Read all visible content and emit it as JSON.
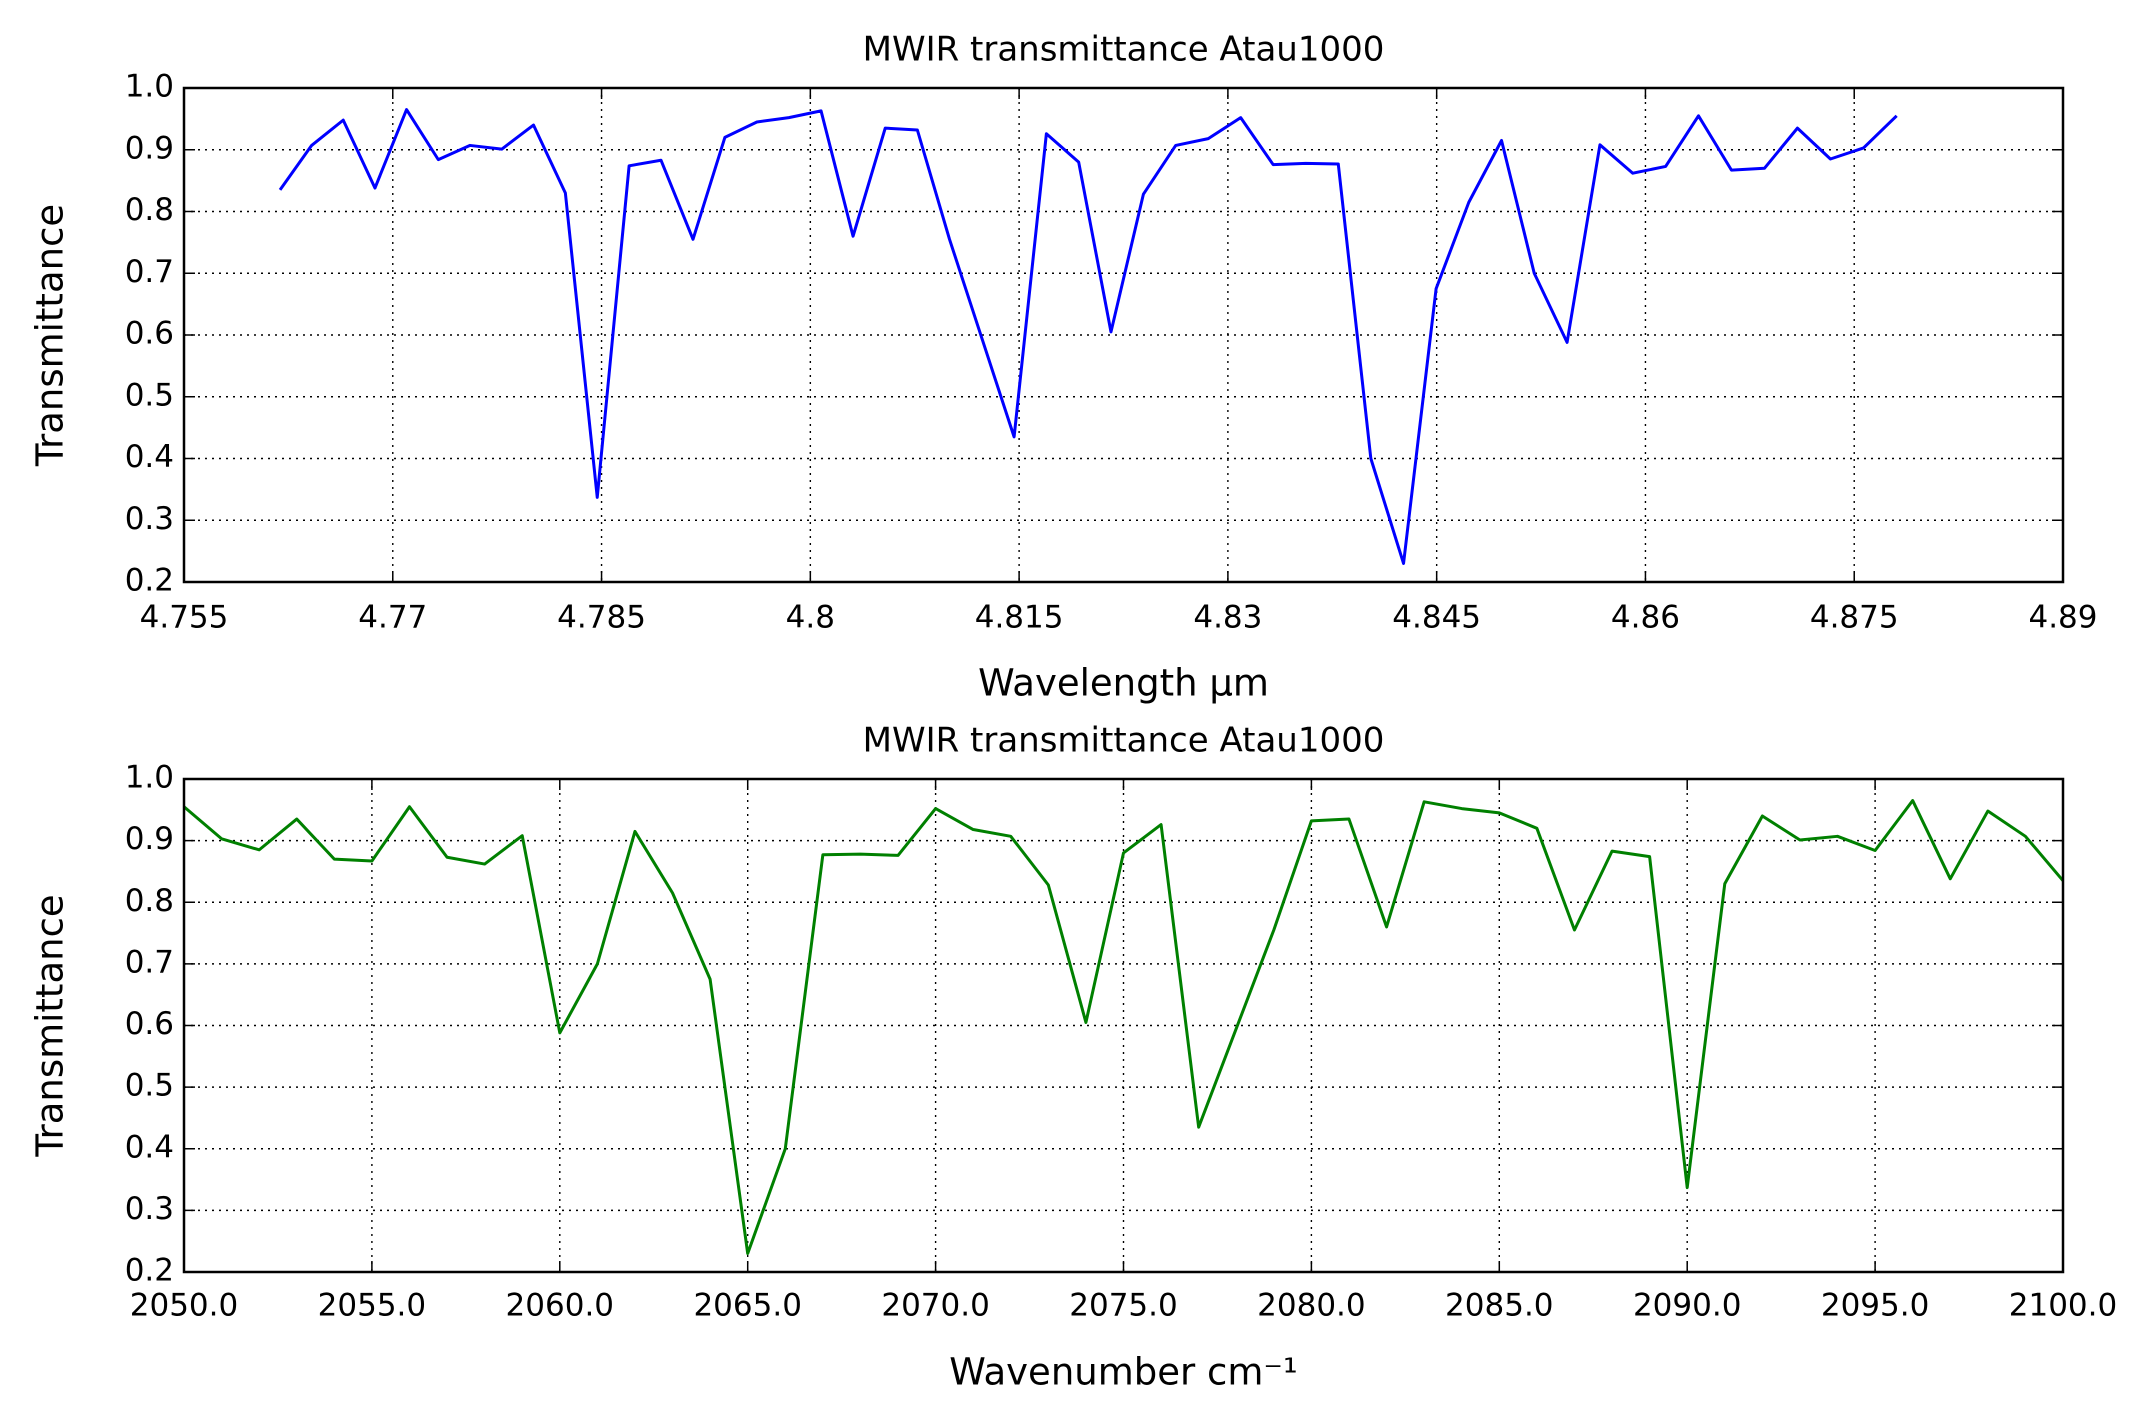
{
  "chart_data": [
    {
      "type": "line",
      "title": "MWIR transmittance Atau1000",
      "x_label": "Wavelength μm",
      "y_label": "Transmittance",
      "color": "#0000ff",
      "grid": true,
      "x": [
        4.7619,
        4.76417,
        4.76644,
        4.76872,
        4.77099,
        4.77327,
        4.77555,
        4.77783,
        4.78011,
        4.7824,
        4.78469,
        4.78698,
        4.78927,
        4.79157,
        4.79386,
        4.79616,
        4.79846,
        4.80077,
        4.80307,
        4.80538,
        4.80769,
        4.81,
        4.81232,
        4.81464,
        4.81696,
        4.81928,
        4.8216,
        4.82393,
        4.82625,
        4.82859,
        4.83092,
        4.83325,
        4.83559,
        4.83793,
        4.84027,
        4.84262,
        4.84496,
        4.84731,
        4.84966,
        4.85201,
        4.85437,
        4.85673,
        4.85909,
        4.86145,
        4.86381,
        4.86618,
        4.86855,
        4.87092,
        4.87329,
        4.87567,
        4.87805
      ],
      "values": [
        0.835,
        0.907,
        0.948,
        0.838,
        0.965,
        0.884,
        0.907,
        0.901,
        0.94,
        0.83,
        0.337,
        0.874,
        0.883,
        0.755,
        0.92,
        0.945,
        0.952,
        0.963,
        0.76,
        0.935,
        0.932,
        0.755,
        0.595,
        0.435,
        0.926,
        0.88,
        0.605,
        0.828,
        0.907,
        0.918,
        0.952,
        0.876,
        0.878,
        0.877,
        0.4,
        0.23,
        0.675,
        0.815,
        0.915,
        0.7,
        0.588,
        0.908,
        0.862,
        0.873,
        0.955,
        0.867,
        0.87,
        0.935,
        0.885,
        0.903,
        0.955
      ],
      "xlim": [
        4.755,
        4.89
      ],
      "xticks": [
        4.755,
        4.77,
        4.785,
        4.8,
        4.815,
        4.83,
        4.845,
        4.86,
        4.875,
        4.89
      ],
      "ylim": [
        0.2,
        {
          "value": 1.0,
          "label": "1.0"
        }
      ],
      "yticks": [
        0.2,
        0.3,
        0.4,
        0.5,
        0.6,
        0.7,
        0.8,
        0.9,
        {
          "value": 1.0,
          "label": "1.0"
        }
      ]
    },
    {
      "type": "line",
      "title": "MWIR transmittance Atau1000",
      "x_label": "Wavenumber cm⁻¹",
      "y_label": "Transmittance",
      "color": "#008000",
      "grid": true,
      "x": [
        2050,
        2051,
        2052,
        2053,
        2054,
        2055,
        2056,
        2057,
        2058,
        2059,
        2060,
        2061,
        2062,
        2063,
        2064,
        2065,
        2066,
        2067,
        2068,
        2069,
        2070,
        2071,
        2072,
        2073,
        2074,
        2075,
        2076,
        2077,
        2078,
        2079,
        2080,
        2081,
        2082,
        2083,
        2084,
        2085,
        2086,
        2087,
        2088,
        2089,
        2090,
        2091,
        2092,
        2093,
        2094,
        2095,
        2096,
        2097,
        2098,
        2099,
        2100
      ],
      "values": [
        0.955,
        0.903,
        0.885,
        0.935,
        0.87,
        0.867,
        0.955,
        0.873,
        0.862,
        0.908,
        0.588,
        0.7,
        0.915,
        0.815,
        0.675,
        0.23,
        0.4,
        0.877,
        0.878,
        0.876,
        0.952,
        0.918,
        0.907,
        0.828,
        0.605,
        0.88,
        0.926,
        0.435,
        0.595,
        0.755,
        0.932,
        0.935,
        0.76,
        0.963,
        0.952,
        0.945,
        0.92,
        0.755,
        0.883,
        0.874,
        0.337,
        0.83,
        0.94,
        0.901,
        0.907,
        0.884,
        0.965,
        0.838,
        0.948,
        0.907,
        0.835
      ],
      "xlim": [
        {
          "value": 2050,
          "label": "2050.0"
        },
        {
          "value": 2100,
          "label": "2100.0"
        }
      ],
      "xticks": [
        {
          "value": 2050,
          "label": "2050.0"
        },
        {
          "value": 2055,
          "label": "2055.0"
        },
        {
          "value": 2060,
          "label": "2060.0"
        },
        {
          "value": 2065,
          "label": "2065.0"
        },
        {
          "value": 2070,
          "label": "2070.0"
        },
        {
          "value": 2075,
          "label": "2075.0"
        },
        {
          "value": 2080,
          "label": "2080.0"
        },
        {
          "value": 2085,
          "label": "2085.0"
        },
        {
          "value": 2090,
          "label": "2090.0"
        },
        {
          "value": 2095,
          "label": "2095.0"
        },
        {
          "value": 2100,
          "label": "2100.0"
        }
      ],
      "ylim": [
        0.2,
        {
          "value": 1.0,
          "label": "1.0"
        }
      ],
      "yticks": [
        0.2,
        0.3,
        0.4,
        0.5,
        0.6,
        0.7,
        0.8,
        0.9,
        {
          "value": 1.0,
          "label": "1.0"
        }
      ]
    }
  ]
}
